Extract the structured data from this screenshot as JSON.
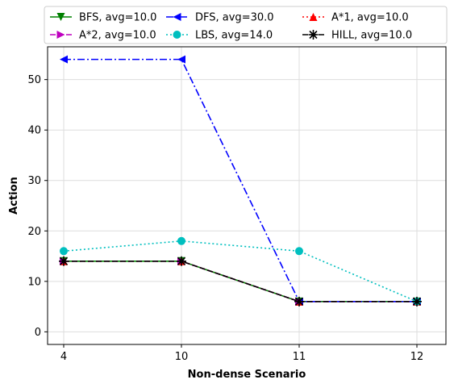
{
  "chart_data": {
    "type": "line",
    "title": "",
    "xlabel": "Non-dense Scenario",
    "ylabel": "Action",
    "categories": [
      "4",
      "10",
      "11",
      "12"
    ],
    "ylim": [
      -2.5,
      56.5
    ],
    "yticks": [
      0,
      10,
      20,
      30,
      40,
      50
    ],
    "grid": true,
    "legend_placement": "top, above plot area, 3 columns",
    "series": [
      {
        "name": "BFS, avg=10.0",
        "values": [
          14,
          14,
          6,
          6
        ],
        "color": "#008000",
        "linestyle": "solid",
        "marker": "triangle-down"
      },
      {
        "name": "DFS, avg=30.0",
        "values": [
          54,
          54,
          6,
          6
        ],
        "color": "#0000ff",
        "linestyle": "dashdot",
        "marker": "triangle-left"
      },
      {
        "name": "A*1, avg=10.0",
        "values": [
          14,
          14,
          6,
          6
        ],
        "color": "#ff0000",
        "linestyle": "dotted",
        "marker": "triangle-up"
      },
      {
        "name": "A*2, avg=10.0",
        "values": [
          14,
          14,
          6,
          6
        ],
        "color": "#bf00bf",
        "linestyle": "dashed",
        "marker": "triangle-right"
      },
      {
        "name": "LBS, avg=14.0",
        "values": [
          16,
          18,
          16,
          6
        ],
        "color": "#00bfbf",
        "linestyle": "dotted",
        "marker": "circle"
      },
      {
        "name": "HILL, avg=10.0",
        "values": [
          14,
          14,
          6,
          6
        ],
        "color": "#000000",
        "linestyle": "dashed",
        "marker": "star"
      }
    ]
  }
}
